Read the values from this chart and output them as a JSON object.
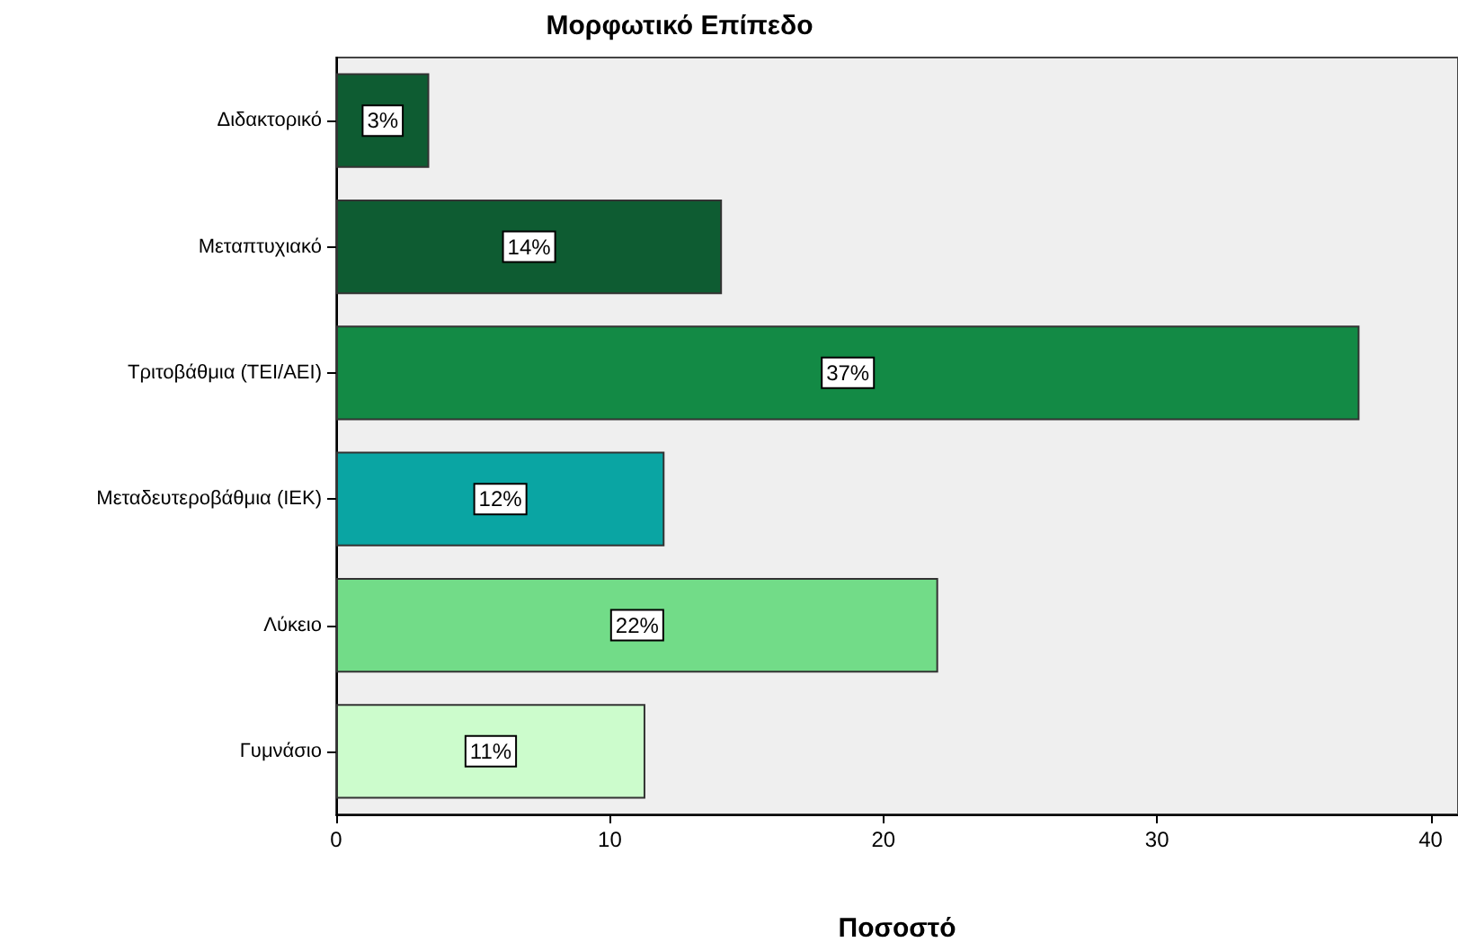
{
  "chart_data": {
    "type": "bar",
    "orientation": "horizontal",
    "title": "Μορφωτικό Επίπεδο",
    "xlabel": "Ποσοστό",
    "categories": [
      "Διδακτορικό",
      "Μεταπτυχιακό",
      "Τριτοβάθμια (ΤΕΙ/ΑΕΙ)",
      "Μεταδευτεροβάθμια (ΙΕΚ)",
      "Λύκειο",
      "Γυμνάσιο"
    ],
    "values": [
      3.4,
      14.1,
      37.4,
      12.0,
      22.0,
      11.3
    ],
    "value_labels": [
      "3%",
      "14%",
      "37%",
      "12%",
      "22%",
      "11%"
    ],
    "colors": [
      "#0e5c32",
      "#0e5c32",
      "#138a45",
      "#0aa5a3",
      "#72dc88",
      "#ccfccc"
    ],
    "xlim": [
      0,
      41
    ],
    "xticks": [
      0,
      10,
      20,
      30,
      40
    ],
    "grid": false
  }
}
